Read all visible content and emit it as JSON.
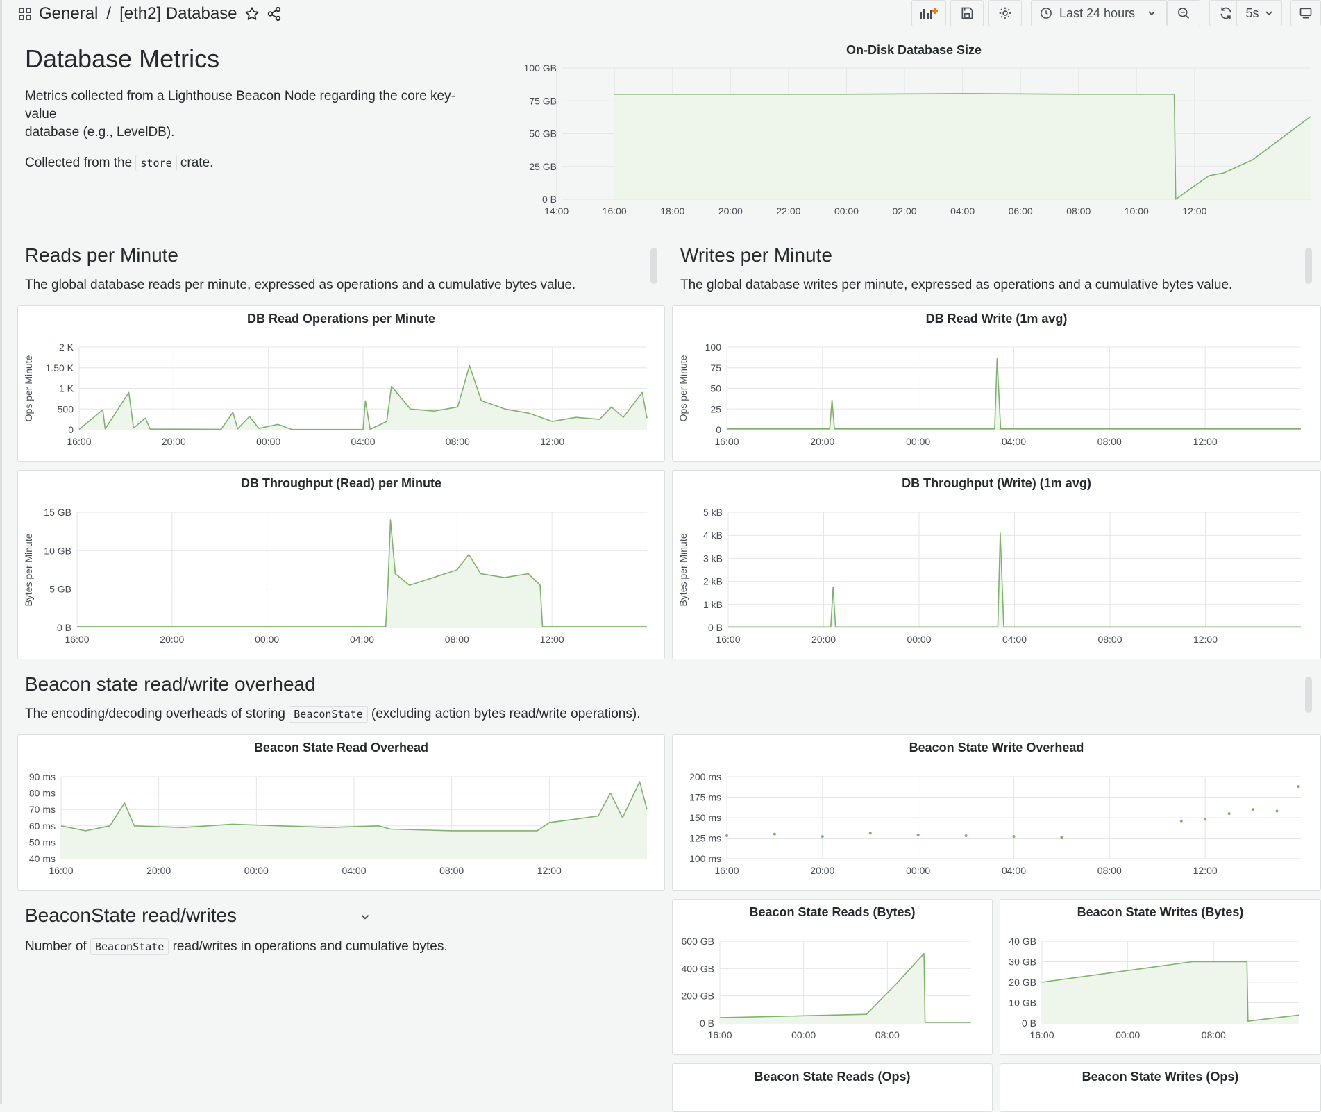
{
  "header": {
    "home": "General",
    "separator": "/",
    "title": "[eth2] Database",
    "time_range": "Last 24 hours",
    "refresh": "5s",
    "icons": [
      "apps-icon",
      "star-icon",
      "share-icon",
      "add-panel-icon",
      "save-icon",
      "gear-icon",
      "clock-icon",
      "chevron-down-icon",
      "zoom-out-icon",
      "refresh-icon",
      "chevron-down-icon",
      "tv-icon"
    ]
  },
  "intro": {
    "title": "Database Metrics",
    "desc_line1": "Metrics collected from a Lighthouse Beacon Node regarding the core key-value",
    "desc_line2": "database (e.g., LevelDB).",
    "collected_pre": "Collected from the",
    "collected_code": "store",
    "collected_post": "crate."
  },
  "reads_section": {
    "title": "Reads per Minute",
    "desc": "The global database reads per minute, expressed as operations and a cumulative bytes value."
  },
  "writes_section": {
    "title": "Writes per Minute",
    "desc": "The global database writes per minute, expressed as operations and a cumulative bytes value."
  },
  "overhead_section": {
    "title": "Beacon state read/write overhead",
    "desc_pre": "The encoding/decoding overheads of storing",
    "desc_code": "BeaconState",
    "desc_post": "(excluding action bytes read/write operations)."
  },
  "rw_section": {
    "title": "BeaconState read/writes",
    "desc_pre": "Number of",
    "desc_code": "BeaconState",
    "desc_post": "read/writes in operations and cumulative bytes."
  },
  "colors": {
    "series": "#7eb26d",
    "fill": "#eef5ea",
    "grid": "#e4e6e8",
    "panel_bg": "#ffffff",
    "border": "#dcdee0"
  },
  "panels": {
    "disk": {
      "title": "On-Disk Database Size",
      "chart_data": {
        "type": "area",
        "ylim": [
          0,
          100
        ],
        "yticks": [
          "100 GB",
          "75 GB",
          "50 GB",
          "25 GB",
          "0 B"
        ],
        "xticks": [
          "18:00",
          "20:00",
          "22:00",
          "00:00",
          "02:00",
          "04:00",
          "06:00",
          "08:00",
          "10:00",
          "12:00",
          "14:00",
          "16:00"
        ],
        "series": [
          {
            "values": [
              {
                "t": 16.0,
                "v": 80
              },
              {
                "t": 20.0,
                "v": 80
              },
              {
                "t": 24.0,
                "v": 80
              },
              {
                "t": 28.0,
                "v": 80.5
              },
              {
                "t": 32.0,
                "v": 80
              },
              {
                "t": 35.3,
                "v": 80
              },
              {
                "t": 35.35,
                "v": 0
              },
              {
                "t": 36.5,
                "v": 18
              },
              {
                "t": 37.0,
                "v": 20
              },
              {
                "t": 38.0,
                "v": 30
              },
              {
                "t": 40.0,
                "v": 63
              }
            ]
          }
        ]
      }
    },
    "read_ops": {
      "title": "DB Read Operations per Minute",
      "chart_data": {
        "type": "line",
        "ylabel": "Ops per Minute",
        "ylim": [
          0,
          2000
        ],
        "yticks": [
          "2 K",
          "1.50 K",
          "1 K",
          "500",
          "0"
        ],
        "xticks": [
          "20:00",
          "00:00",
          "04:00",
          "08:00",
          "12:00",
          "16:00"
        ],
        "series": [
          {
            "values": [
              {
                "t": 16,
                "v": 10
              },
              {
                "t": 17,
                "v": 480
              },
              {
                "t": 17.1,
                "v": 20
              },
              {
                "t": 18.1,
                "v": 900
              },
              {
                "t": 18.3,
                "v": 40
              },
              {
                "t": 18.8,
                "v": 280
              },
              {
                "t": 19,
                "v": 15
              },
              {
                "t": 22,
                "v": 10
              },
              {
                "t": 22.5,
                "v": 420
              },
              {
                "t": 22.7,
                "v": 20
              },
              {
                "t": 23.2,
                "v": 320
              },
              {
                "t": 23.6,
                "v": 30
              },
              {
                "t": 24.4,
                "v": 130
              },
              {
                "t": 25,
                "v": 5
              },
              {
                "t": 28,
                "v": 5
              },
              {
                "t": 28.1,
                "v": 700
              },
              {
                "t": 28.3,
                "v": 10
              },
              {
                "t": 29,
                "v": 200
              },
              {
                "t": 29.2,
                "v": 1050
              },
              {
                "t": 30,
                "v": 500
              },
              {
                "t": 31,
                "v": 450
              },
              {
                "t": 32,
                "v": 550
              },
              {
                "t": 32.5,
                "v": 1550
              },
              {
                "t": 33,
                "v": 700
              },
              {
                "t": 34,
                "v": 500
              },
              {
                "t": 35,
                "v": 400
              },
              {
                "t": 36,
                "v": 200
              },
              {
                "t": 37,
                "v": 300
              },
              {
                "t": 38,
                "v": 250
              },
              {
                "t": 38.5,
                "v": 550
              },
              {
                "t": 39,
                "v": 300
              },
              {
                "t": 39.8,
                "v": 900
              },
              {
                "t": 40,
                "v": 280
              }
            ]
          }
        ]
      }
    },
    "write_ops": {
      "title": "DB Read Write (1m avg)",
      "chart_data": {
        "type": "line",
        "ylabel": "Ops per Minute",
        "ylim": [
          0,
          100
        ],
        "yticks": [
          "100",
          "75",
          "50",
          "25",
          "0"
        ],
        "xticks": [
          "20:00",
          "00:00",
          "04:00",
          "08:00",
          "12:00",
          "16:00"
        ],
        "series": [
          {
            "values": [
              {
                "t": 16,
                "v": 1
              },
              {
                "t": 20.3,
                "v": 1
              },
              {
                "t": 20.4,
                "v": 36
              },
              {
                "t": 20.5,
                "v": 1
              },
              {
                "t": 27.2,
                "v": 1
              },
              {
                "t": 27.3,
                "v": 86
              },
              {
                "t": 27.45,
                "v": 1
              },
              {
                "t": 40,
                "v": 1
              }
            ]
          }
        ]
      }
    },
    "read_bytes": {
      "title": "DB Throughput (Read) per Minute",
      "chart_data": {
        "type": "area",
        "ylabel": "Bytes per Minute",
        "ylim": [
          0,
          15
        ],
        "yticks": [
          "15 GB",
          "10 GB",
          "5 GB",
          "0 B"
        ],
        "xticks": [
          "20:00",
          "00:00",
          "04:00",
          "08:00",
          "12:00",
          "16:00"
        ],
        "series": [
          {
            "values": [
              {
                "t": 16,
                "v": 0.1
              },
              {
                "t": 29.0,
                "v": 0.1
              },
              {
                "t": 29.1,
                "v": 6
              },
              {
                "t": 29.2,
                "v": 14
              },
              {
                "t": 29.4,
                "v": 7
              },
              {
                "t": 30,
                "v": 5.5
              },
              {
                "t": 31,
                "v": 6.5
              },
              {
                "t": 32,
                "v": 7.5
              },
              {
                "t": 32.5,
                "v": 9.5
              },
              {
                "t": 33,
                "v": 7
              },
              {
                "t": 34,
                "v": 6.5
              },
              {
                "t": 35,
                "v": 7
              },
              {
                "t": 35.5,
                "v": 5.5
              },
              {
                "t": 35.6,
                "v": 0.1
              },
              {
                "t": 40,
                "v": 0.1
              }
            ]
          }
        ]
      }
    },
    "write_bytes": {
      "title": "DB Throughput (Write) (1m avg)",
      "chart_data": {
        "type": "line",
        "ylabel": "Bytes per Minute",
        "ylim": [
          0,
          5
        ],
        "yticks": [
          "5 kB",
          "4 kB",
          "3 kB",
          "2 kB",
          "1 kB",
          "0 B"
        ],
        "xticks": [
          "20:00",
          "00:00",
          "04:00",
          "08:00",
          "12:00",
          "16:00"
        ],
        "series": [
          {
            "values": [
              {
                "t": 16,
                "v": 0.02
              },
              {
                "t": 20.3,
                "v": 0.02
              },
              {
                "t": 20.4,
                "v": 1.75
              },
              {
                "t": 20.5,
                "v": 0.02
              },
              {
                "t": 27.3,
                "v": 0.02
              },
              {
                "t": 27.4,
                "v": 4.1
              },
              {
                "t": 27.55,
                "v": 0.02
              },
              {
                "t": 40,
                "v": 0.02
              }
            ]
          }
        ]
      }
    },
    "read_overhead": {
      "title": "Beacon State Read Overhead",
      "chart_data": {
        "type": "line",
        "ylim": [
          40,
          90
        ],
        "yticks": [
          "90 ms",
          "80 ms",
          "70 ms",
          "60 ms",
          "50 ms",
          "40 ms"
        ],
        "xticks": [
          "20:00",
          "00:00",
          "04:00",
          "08:00",
          "12:00",
          "16:00"
        ],
        "series": [
          {
            "values": [
              {
                "t": 16,
                "v": 60
              },
              {
                "t": 17,
                "v": 57
              },
              {
                "t": 18,
                "v": 60
              },
              {
                "t": 18.6,
                "v": 74
              },
              {
                "t": 19,
                "v": 60
              },
              {
                "t": 21,
                "v": 59
              },
              {
                "t": 23,
                "v": 61
              },
              {
                "t": 25,
                "v": 60
              },
              {
                "t": 27,
                "v": 59
              },
              {
                "t": 29,
                "v": 60
              },
              {
                "t": 29.5,
                "v": 58
              },
              {
                "t": 32,
                "v": 57
              },
              {
                "t": 35.5,
                "v": 57
              },
              {
                "t": 36,
                "v": 62
              },
              {
                "t": 37,
                "v": 64
              },
              {
                "t": 38,
                "v": 66
              },
              {
                "t": 38.5,
                "v": 80
              },
              {
                "t": 39,
                "v": 65
              },
              {
                "t": 39.7,
                "v": 87
              },
              {
                "t": 40,
                "v": 70
              }
            ]
          }
        ]
      }
    },
    "write_overhead": {
      "title": "Beacon State Write Overhead",
      "chart_data": {
        "type": "scatter",
        "ylim": [
          100,
          200
        ],
        "yticks": [
          "200 ms",
          "175 ms",
          "150 ms",
          "125 ms",
          "100 ms"
        ],
        "xticks": [
          "20:00",
          "00:00",
          "04:00",
          "08:00",
          "12:00",
          "16:00"
        ],
        "series": [
          {
            "values": [
              {
                "t": 16,
                "v": 128
              },
              {
                "t": 18,
                "v": 130
              },
              {
                "t": 20,
                "v": 127
              },
              {
                "t": 22,
                "v": 131
              },
              {
                "t": 24,
                "v": 129
              },
              {
                "t": 26,
                "v": 128
              },
              {
                "t": 28,
                "v": 127
              },
              {
                "t": 30,
                "v": 126
              },
              {
                "t": 35,
                "v": 146
              },
              {
                "t": 36,
                "v": 148
              },
              {
                "t": 37,
                "v": 155
              },
              {
                "t": 38,
                "v": 160
              },
              {
                "t": 39,
                "v": 158
              },
              {
                "t": 39.9,
                "v": 188
              }
            ]
          }
        ]
      }
    },
    "reads_bytes": {
      "title": "Beacon State Reads (Bytes)",
      "chart_data": {
        "type": "area",
        "ylim": [
          0,
          600
        ],
        "yticks": [
          "600 GB",
          "400 GB",
          "200 GB",
          "0 B"
        ],
        "xticks": [
          "00:00",
          "08:00",
          "16:00"
        ],
        "series": [
          {
            "values": [
              {
                "t": 16,
                "v": 40
              },
              {
                "t": 30,
                "v": 65
              },
              {
                "t": 33,
                "v": 300
              },
              {
                "t": 35.5,
                "v": 510
              },
              {
                "t": 35.6,
                "v": 5
              },
              {
                "t": 40,
                "v": 5
              }
            ]
          }
        ]
      }
    },
    "writes_bytes": {
      "title": "Beacon State Writes (Bytes)",
      "chart_data": {
        "type": "area",
        "ylim": [
          0,
          40
        ],
        "yticks": [
          "40 GB",
          "30 GB",
          "20 GB",
          "10 GB",
          "0 B"
        ],
        "xticks": [
          "00:00",
          "08:00",
          "16:00"
        ],
        "series": [
          {
            "values": [
              {
                "t": 16,
                "v": 20
              },
              {
                "t": 30,
                "v": 30
              },
              {
                "t": 35.1,
                "v": 30
              },
              {
                "t": 35.2,
                "v": 1
              },
              {
                "t": 40,
                "v": 4
              }
            ]
          }
        ]
      }
    },
    "reads_ops": {
      "title": "Beacon State Reads (Ops)"
    },
    "writes_ops": {
      "title": "Beacon State Writes (Ops)"
    }
  }
}
